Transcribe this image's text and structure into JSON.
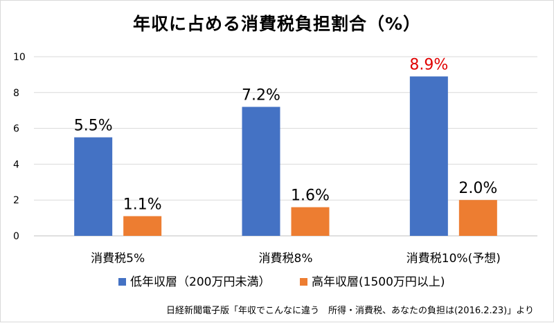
{
  "chart_data": {
    "type": "bar",
    "title": "年収に占める消費税負担割合（%）",
    "categories": [
      "消費税5%",
      "消費税8%",
      "消費税10%(予想)"
    ],
    "series": [
      {
        "name": "低年収層（200万円未満）",
        "color": "#4472c4",
        "values": [
          5.5,
          7.2,
          8.9
        ],
        "labels": [
          "5.5%",
          "7.2%",
          "8.9%"
        ],
        "label_colors": [
          "#000000",
          "#000000",
          "#e00000"
        ]
      },
      {
        "name": "高年収層(1500万円以上)",
        "color": "#ed7d31",
        "values": [
          1.1,
          1.6,
          2.0
        ],
        "labels": [
          "1.1%",
          "1.6%",
          "2.0%"
        ],
        "label_colors": [
          "#000000",
          "#000000",
          "#000000"
        ]
      }
    ],
    "ylim": [
      0,
      10
    ],
    "yticks": [
      0,
      2,
      4,
      6,
      8,
      10
    ],
    "grid": true,
    "legend": "bottom",
    "xlabel": "",
    "ylabel": ""
  },
  "source": "日経新聞電子版「年収でこんなに違う　所得・消費税、あなたの負担は(2016.2.23)」より"
}
